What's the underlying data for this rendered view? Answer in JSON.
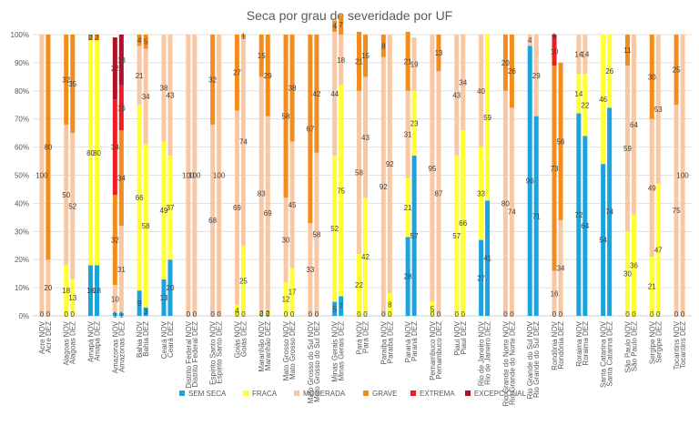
{
  "chart_data": {
    "type": "bar",
    "stacked": "percent",
    "title": "Seca por grau de severidade por UF",
    "xlabel": "",
    "ylabel": "",
    "ylim": [
      0,
      100
    ],
    "y_ticks": [
      "0%",
      "10%",
      "20%",
      "30%",
      "40%",
      "50%",
      "60%",
      "70%",
      "80%",
      "90%",
      "100%"
    ],
    "grid": true,
    "legend_position": "bottom",
    "categories": [
      "Acre NOV",
      "Acre DEZ",
      "Alagoas NOV",
      "Alagoas DEZ",
      "Amapá NOV",
      "Amapá DEZ",
      "Amazonas NOV",
      "Amazonas DEZ",
      "Bahia NOV",
      "Bahia DEZ",
      "Ceará NOV",
      "Ceará DEZ",
      "Distrito Federal NOV",
      "Distrito Federal DEZ",
      "Espírito Santo NOV",
      "Espírito Santo DEZ",
      "Goiás NOV",
      "Goiás DEZ",
      "Maranhão NOV",
      "Maranhão DEZ",
      "Mato Grosso NOV",
      "Mato Grosso DEZ",
      "Mato Grosso do Sul NOV",
      "Mato Grosso do Sul DEZ",
      "Minas Gerais NOV",
      "Minas Gerais DEZ",
      "Pará NOV",
      "Pará DEZ",
      "Paraíba NOV",
      "Paraíba DEZ",
      "Paraná NOV",
      "Paraná DEZ",
      "Pernambuco NOV",
      "Pernambuco DEZ",
      "Piauí NOV",
      "Piauí DEZ",
      "Rio de Janeiro NOV",
      "Rio de Janeiro DEZ",
      "Rio Grande do Norte NOV",
      "Rio Grande do Norte DEZ",
      "Rio Grande do Sul NOV",
      "Rio Grande do Sul DEZ",
      "Rondônia NOV",
      "Rondônia DEZ",
      "Roraima NOV",
      "Roraima DEZ",
      "Santa Catarina NOV",
      "Santa Catarina DEZ",
      "São Paulo NOV",
      "São Paulo DEZ",
      "Sergipe NOV",
      "Sergipe DEZ",
      "Tocantins NOV",
      "Tocantins DEZ"
    ],
    "series": [
      {
        "name": "SEM SECA",
        "color": "#1aa3dc",
        "values": [
          0,
          0,
          0,
          0,
          18,
          18,
          1,
          1,
          9,
          3,
          13,
          20,
          0,
          0,
          0,
          0,
          0,
          0,
          0,
          0,
          0,
          0,
          0,
          0,
          5,
          7,
          0,
          0,
          0,
          0,
          28,
          57,
          0,
          0,
          0,
          0,
          27,
          41,
          0,
          0,
          96,
          71,
          0,
          0,
          72,
          64,
          54,
          74,
          0,
          0,
          0,
          0,
          0,
          0
        ]
      },
      {
        "name": "FRACA",
        "color": "#ffff33",
        "values": [
          0,
          0,
          18,
          13,
          80,
          80,
          0,
          0,
          66,
          58,
          49,
          37,
          0,
          0,
          0,
          0,
          4,
          25,
          2,
          2,
          12,
          17,
          0,
          0,
          52,
          75,
          22,
          42,
          0,
          8,
          21,
          23,
          5,
          0,
          57,
          66,
          33,
          59,
          0,
          0,
          0,
          0,
          0,
          0,
          14,
          22,
          46,
          26,
          30,
          36,
          21,
          47,
          0,
          0
        ]
      },
      {
        "name": "MODERADA",
        "color": "#f9c7a3",
        "values": [
          100,
          20,
          50,
          52,
          0,
          0,
          10,
          31,
          21,
          34,
          38,
          43,
          100,
          100,
          68,
          100,
          69,
          74,
          83,
          69,
          30,
          45,
          33,
          58,
          44,
          18,
          58,
          43,
          92,
          92,
          31,
          19,
          95,
          87,
          43,
          34,
          40,
          0,
          80,
          74,
          4,
          29,
          16,
          34,
          14,
          14,
          0,
          0,
          59,
          64,
          49,
          53,
          75,
          100
        ]
      },
      {
        "name": "GRAVE",
        "color": "#f28c1c",
        "values": [
          0,
          80,
          32,
          35,
          2,
          2,
          32,
          34,
          4,
          5,
          0,
          0,
          0,
          0,
          32,
          0,
          27,
          1,
          15,
          29,
          58,
          38,
          67,
          42,
          4,
          7,
          21,
          15,
          8,
          0,
          21,
          0,
          0,
          13,
          0,
          0,
          0,
          0,
          20,
          26,
          0,
          0,
          73,
          56,
          0,
          0,
          0,
          0,
          11,
          0,
          30,
          0,
          25,
          0
        ]
      },
      {
        "name": "EXTREMA",
        "color": "#ee1d23",
        "values": [
          0,
          0,
          0,
          0,
          0,
          0,
          34,
          16,
          0,
          0,
          0,
          0,
          0,
          0,
          0,
          0,
          0,
          0,
          0,
          0,
          0,
          0,
          0,
          0,
          0,
          0,
          0,
          0,
          0,
          0,
          0,
          0,
          0,
          0,
          0,
          0,
          0,
          0,
          0,
          0,
          0,
          0,
          10,
          0,
          0,
          0,
          0,
          0,
          0,
          0,
          0,
          0,
          0,
          0
        ]
      },
      {
        "name": "EXCEPCIONAL",
        "color": "#b01028",
        "values": [
          0,
          0,
          0,
          0,
          0,
          0,
          22,
          18,
          0,
          0,
          0,
          0,
          0,
          0,
          0,
          0,
          0,
          0,
          0,
          0,
          0,
          0,
          0,
          0,
          0,
          0,
          0,
          0,
          0,
          0,
          0,
          0,
          0,
          0,
          0,
          0,
          0,
          0,
          0,
          0,
          0,
          0,
          1,
          0,
          0,
          0,
          0,
          0,
          0,
          0,
          0,
          0,
          0,
          0
        ]
      }
    ]
  }
}
